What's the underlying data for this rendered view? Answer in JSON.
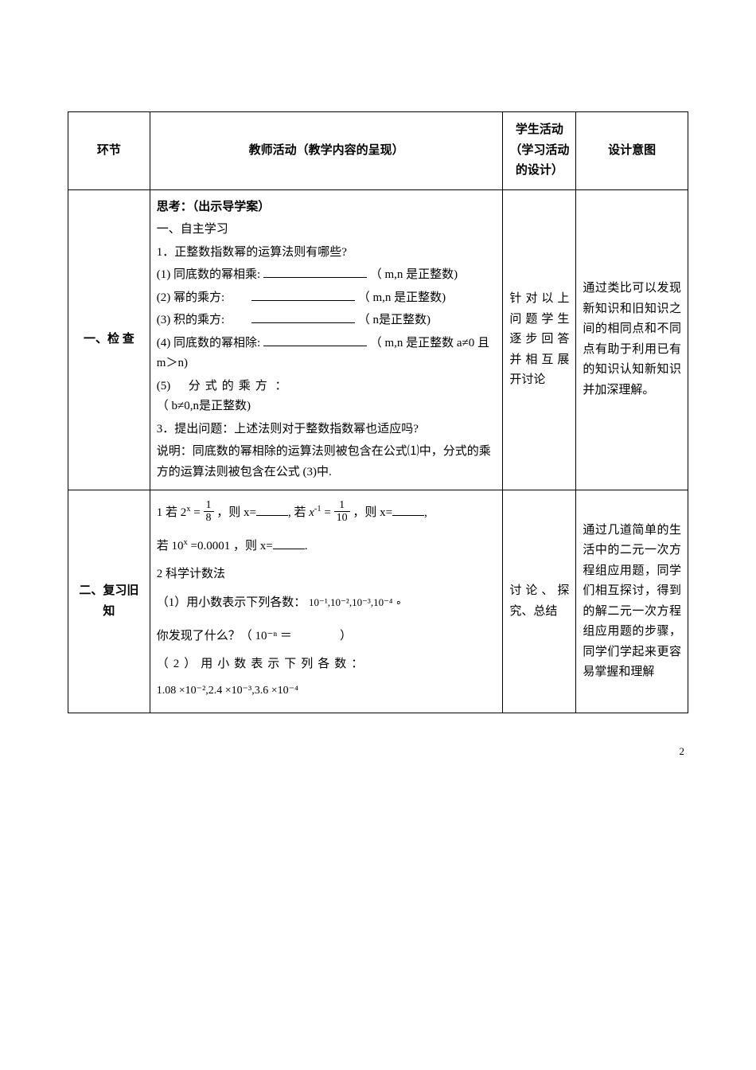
{
  "header": {
    "col1": "环节",
    "col2": "教师活动（教学内容的呈现）",
    "col3": "学生活动（学习活动的设计）",
    "col4": "设计意图"
  },
  "row1": {
    "label": "一、检 查",
    "content": {
      "title": "思考：（出示导学案）",
      "sub1": "一、自主学习",
      "q1": "1．正整数指数幂的运算法则有哪些?",
      "i1a": "(1) 同底数的幂相乘:",
      "i1b": "（ m,n 是正整数)",
      "i2a": "(2) 幂的乘方:",
      "i2b": "（ m,n 是正整数)",
      "i3a": "(3) 积的乘方:",
      "i3b": "（ n是正整数)",
      "i4a": "(4) 同底数的幂相除:",
      "i4b": "（ m,n 是正整数 a≠0 且 m＞n)",
      "i5a": "(5)",
      "i5mid": "分式的乘方",
      "i5b": "：",
      "i5c": "（ b≠0,n是正整数)",
      "q3": "3．提出问题：上述法则对于整数指数幂也适应吗?",
      "note": "说明：同底数的幂相除的运算法则被包含在公式⑴中，分式的乘方的运算法则被包含在公式 (3)中."
    },
    "student": "针对以上问题学生逐步回答并相互展开讨论",
    "intent": "通过类比可以发现新知识和旧知识之间的相同点和不同点有助于利用已有的知识认知新知识并加深理解。"
  },
  "row2": {
    "label": "二、复习旧知",
    "content": {
      "q1a": "1 若",
      "q1b": "，则 x=",
      "q1c": ",  若",
      "q1d": "，则 x=",
      "q1e": ",",
      "q1f": "若",
      "q1g": "，则 x=",
      "q1h": ".",
      "eq1lhs": "2",
      "eq1exp": "x",
      "eq1eq": "=",
      "eq1num": "1",
      "eq1den": "8",
      "eq2lhs": "x",
      "eq2exp": "-1",
      "eq2eq": "=",
      "eq2num": "1",
      "eq2den": "10",
      "eq3lhs": "10",
      "eq3exp": "x",
      "eq3eq": "=0.0001",
      "q2": "2 科学计数法",
      "q2_1": "（1）用小数表示下列各数：",
      "expr1": "10⁻¹,10⁻²,10⁻³,10⁻⁴ ∘",
      "find": "你发现了什么？（ 10⁻ⁿ ＝",
      "findEnd": "）",
      "q2_2": "（2）用小数表示下列各数：",
      "expr2": "1.08 ×10⁻²,2.4 ×10⁻³,3.6 ×10⁻⁴"
    },
    "student": "讨论、探究、总结",
    "intent": "通过几道简单的生活中的二元一次方程组应用题，同学们相互探讨，得到的解二元一次方程组应用题的步骤，同学们学起来更容易掌握和理解"
  },
  "pageNumber": "2"
}
